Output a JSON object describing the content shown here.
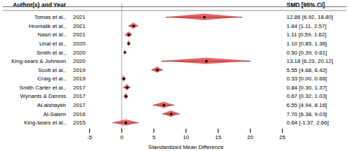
{
  "chart_data": {
    "type": "forest",
    "xlabel": "Standardized Mean Difference",
    "headers": [
      "Author(s) and Year",
      "SMD [95% CI]"
    ],
    "categories": [
      "Tomas et al.,",
      "Hromalik et al.,",
      "Nasri et al.,",
      "Unal et al.,",
      "Smith et al.,",
      "King-sears & Johnson",
      "Scott et al.,",
      "Craig et al.,",
      "Smith Carter et al.,",
      "Wynants & Dennis",
      "Al-alshaykh",
      "Al-Salem",
      "King-sears et al.,"
    ],
    "years": [
      "2021",
      "2021",
      "2021",
      "2020",
      "2020",
      "2020",
      "2019",
      "2019",
      "2017",
      "2017",
      "2017",
      "2016",
      "2015"
    ],
    "values": [
      12.86,
      1.84,
      1.11,
      1.1,
      0.5,
      13.18,
      5.55,
      0.33,
      0.84,
      0.67,
      6.55,
      7.7,
      0.64
    ],
    "ci_low": [
      6.92,
      1.11,
      0.59,
      0.85,
      0.39,
      6.23,
      4.68,
      0.0,
      0.3,
      0.32,
      4.94,
      6.38,
      -1.37
    ],
    "ci_high": [
      18.8,
      2.57,
      1.62,
      1.36,
      0.61,
      20.12,
      6.42,
      0.66,
      1.37,
      1.03,
      8.16,
      9.03,
      2.66
    ],
    "value_labels": [
      "12.86 [6.92, 18.80]",
      "1.84 [1.11, 2.57]",
      "1.11 [0.59, 1.62]",
      "1.10 [0.85, 1.36]",
      "0.50 [0.39, 0.61]",
      "13.18 [6.23, 20.12]",
      "5.55 [4.68, 6.42]",
      "0.33 [0.00, 0.66]",
      "0.84 [0.30, 1.37]",
      "0.67 [0.32, 1.03]",
      "6.55 [4.94, 8.16]",
      "7.70 [6.38, 9.03]",
      "0.64 [-1.37, 2.66]"
    ],
    "xlim": [
      -5,
      25
    ],
    "xticks": [
      -5,
      0,
      5,
      10,
      15,
      20,
      25
    ],
    "color": "#dd3333",
    "reference_line": 0
  }
}
